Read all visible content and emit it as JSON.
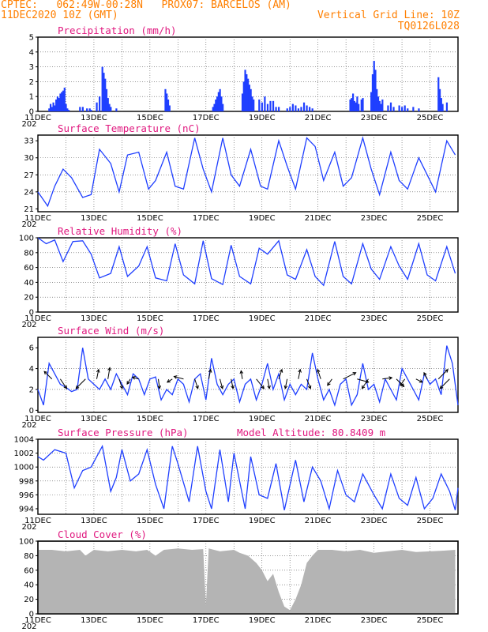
{
  "header": {
    "line1_left": "CPTEC:   062:49W-00:28N   PROX07: BARCELOS (AM)",
    "line2_left": "11DEC2020 10Z (GMT)",
    "line2_right": "Vertical Grid Line: 10Z",
    "line3_right": "TQ0126L028"
  },
  "colors": {
    "header": "#ff7f00",
    "title": "#e0187f",
    "line": "#1f3fff",
    "bars": "#1f3fff",
    "cloud": "#b4b4b4",
    "arrows": "#000000"
  },
  "xaxis": {
    "labels": [
      "11DEC",
      "13DEC",
      "15DEC",
      "17DEC",
      "19DEC",
      "21DEC",
      "23DEC",
      "25DEC"
    ],
    "year_fragment": "202"
  },
  "chart_data": [
    {
      "type": "bar",
      "title": "Precipitation (mm/h)",
      "ylim": [
        0,
        5
      ],
      "yticks": [
        "0",
        "1",
        "2",
        "3",
        "4",
        "5"
      ],
      "x_days": [
        0.4,
        0.45,
        0.5,
        0.55,
        0.6,
        0.65,
        0.7,
        0.75,
        0.8,
        0.85,
        0.9,
        0.95,
        1.0,
        1.05,
        1.1,
        1.5,
        1.6,
        1.75,
        1.85,
        1.9,
        2.1,
        2.2,
        2.3,
        2.35,
        2.4,
        2.45,
        2.5,
        2.55,
        2.6,
        2.8,
        4.55,
        4.6,
        4.65,
        4.7,
        6.25,
        6.3,
        6.35,
        6.4,
        6.45,
        6.5,
        6.55,
        6.6,
        7.3,
        7.35,
        7.4,
        7.45,
        7.5,
        7.55,
        7.6,
        7.65,
        7.7,
        7.9,
        8.0,
        8.1,
        8.2,
        8.3,
        8.4,
        8.5,
        8.6,
        8.9,
        9.0,
        9.1,
        9.2,
        9.3,
        9.4,
        9.5,
        9.6,
        9.7,
        9.8,
        11.15,
        11.2,
        11.25,
        11.3,
        11.35,
        11.4,
        11.45,
        11.55,
        11.6,
        11.9,
        11.95,
        12.0,
        12.05,
        12.1,
        12.15,
        12.2,
        12.25,
        12.3,
        12.5,
        12.6,
        12.7,
        12.9,
        13.0,
        13.1,
        13.2,
        13.4,
        13.6,
        14.3,
        14.35,
        14.4,
        14.45,
        14.6
      ],
      "values": [
        0.2,
        0.5,
        0.3,
        0.6,
        0.4,
        0.8,
        1.0,
        0.9,
        1.2,
        1.3,
        1.4,
        1.6,
        0.5,
        0.2,
        0.1,
        0.3,
        0.3,
        0.2,
        0.2,
        0.1,
        0.6,
        1.0,
        3.0,
        2.6,
        2.2,
        1.5,
        0.9,
        0.5,
        0.3,
        0.2,
        1.5,
        1.2,
        0.8,
        0.4,
        0.3,
        0.5,
        0.8,
        1.0,
        1.3,
        1.5,
        1.0,
        0.5,
        1.2,
        2.0,
        2.8,
        2.5,
        2.2,
        1.8,
        1.5,
        1.0,
        0.8,
        0.8,
        0.6,
        1.0,
        0.5,
        0.7,
        0.7,
        0.3,
        0.3,
        0.2,
        0.3,
        0.5,
        0.4,
        0.2,
        0.3,
        0.6,
        0.4,
        0.3,
        0.2,
        0.8,
        0.9,
        1.2,
        0.7,
        0.6,
        1.0,
        0.5,
        0.8,
        0.9,
        1.3,
        2.5,
        3.4,
        2.8,
        1.5,
        1.0,
        0.7,
        0.5,
        0.8,
        0.4,
        0.6,
        0.3,
        0.4,
        0.3,
        0.4,
        0.2,
        0.3,
        0.2,
        2.3,
        1.5,
        0.9,
        0.5,
        0.6
      ]
    },
    {
      "type": "line",
      "title": "Surface Temperature (nC)",
      "ylim": [
        20.5,
        34
      ],
      "yticks": [
        "21",
        "24",
        "27",
        "30",
        "33"
      ],
      "ytick_values": [
        21,
        24,
        27,
        30,
        33
      ],
      "x_days": [
        0.0,
        0.35,
        0.6,
        0.9,
        1.2,
        1.6,
        1.9,
        2.2,
        2.6,
        2.9,
        3.2,
        3.6,
        3.95,
        4.2,
        4.6,
        4.9,
        5.2,
        5.6,
        5.9,
        6.2,
        6.6,
        6.9,
        7.2,
        7.6,
        7.95,
        8.2,
        8.6,
        8.9,
        9.2,
        9.6,
        9.9,
        10.2,
        10.6,
        10.9,
        11.2,
        11.6,
        11.9,
        12.2,
        12.6,
        12.9,
        13.2,
        13.6,
        13.9,
        14.2,
        14.6,
        14.9
      ],
      "values": [
        24.0,
        21.5,
        25.0,
        28.0,
        26.5,
        23.0,
        23.5,
        31.5,
        29.0,
        24.0,
        30.5,
        31.0,
        24.5,
        26.0,
        31.0,
        25.0,
        24.5,
        33.5,
        28.0,
        24.0,
        33.5,
        27.0,
        25.0,
        31.5,
        25.0,
        24.5,
        33.0,
        28.5,
        24.5,
        33.5,
        32.0,
        26.0,
        31.0,
        25.0,
        26.5,
        33.5,
        28.0,
        23.5,
        31.0,
        26.0,
        24.5,
        30.0,
        27.0,
        24.0,
        33.0,
        30.5
      ]
    },
    {
      "type": "line",
      "title": "Relative Humidity (%)",
      "ylim": [
        0,
        100
      ],
      "yticks": [
        "0",
        "20",
        "40",
        "60",
        "80",
        "100"
      ],
      "ytick_values": [
        0,
        20,
        40,
        60,
        80,
        100
      ],
      "x_days": [
        0.0,
        0.3,
        0.6,
        0.9,
        1.25,
        1.6,
        1.9,
        2.2,
        2.6,
        2.9,
        3.2,
        3.6,
        3.9,
        4.2,
        4.6,
        4.9,
        5.2,
        5.6,
        5.9,
        6.2,
        6.6,
        6.9,
        7.2,
        7.6,
        7.9,
        8.2,
        8.6,
        8.9,
        9.2,
        9.6,
        9.9,
        10.2,
        10.6,
        10.9,
        11.2,
        11.6,
        11.9,
        12.2,
        12.6,
        12.9,
        13.2,
        13.6,
        13.9,
        14.2,
        14.6,
        14.9
      ],
      "values": [
        100,
        92,
        97,
        68,
        95,
        96,
        78,
        46,
        52,
        88,
        48,
        62,
        88,
        46,
        42,
        92,
        50,
        38,
        96,
        45,
        37,
        90,
        48,
        38,
        86,
        78,
        96,
        50,
        44,
        84,
        48,
        36,
        95,
        48,
        38,
        92,
        58,
        44,
        88,
        62,
        44,
        92,
        50,
        42,
        88,
        52
      ]
    },
    {
      "type": "line",
      "title": "Surface Wind (m/s)",
      "ylim": [
        -0.2,
        7
      ],
      "yticks": [
        "0",
        "2",
        "4",
        "6"
      ],
      "ytick_values": [
        0,
        2,
        4,
        6
      ],
      "x_days": [
        0.0,
        0.2,
        0.4,
        0.6,
        0.8,
        1.0,
        1.2,
        1.4,
        1.6,
        1.8,
        2.0,
        2.2,
        2.4,
        2.6,
        2.8,
        3.0,
        3.2,
        3.4,
        3.6,
        3.8,
        4.0,
        4.2,
        4.4,
        4.6,
        4.8,
        5.0,
        5.2,
        5.4,
        5.6,
        5.8,
        6.0,
        6.2,
        6.4,
        6.6,
        6.8,
        7.0,
        7.2,
        7.4,
        7.6,
        7.8,
        8.0,
        8.2,
        8.4,
        8.6,
        8.8,
        9.0,
        9.2,
        9.4,
        9.6,
        9.8,
        10.0,
        10.2,
        10.4,
        10.6,
        10.8,
        11.0,
        11.2,
        11.4,
        11.6,
        11.8,
        12.0,
        12.2,
        12.4,
        12.6,
        12.8,
        13.0,
        13.2,
        13.4,
        13.6,
        13.8,
        14.0,
        14.2,
        14.4,
        14.6,
        14.8,
        15.0
      ],
      "values": [
        2.0,
        0.5,
        4.5,
        3.5,
        2.5,
        2.2,
        1.8,
        2.0,
        6.0,
        3.0,
        2.5,
        2.0,
        3.0,
        2.0,
        3.5,
        2.5,
        1.5,
        3.5,
        3.0,
        1.5,
        3.0,
        3.2,
        1.0,
        2.0,
        1.5,
        3.0,
        2.5,
        0.8,
        3.0,
        3.5,
        1.0,
        5.0,
        2.5,
        1.5,
        2.5,
        3.0,
        0.8,
        2.5,
        3.0,
        1.0,
        2.5,
        4.5,
        2.0,
        3.5,
        1.0,
        2.5,
        1.5,
        2.5,
        2.0,
        5.5,
        3.0,
        1.0,
        2.0,
        0.5,
        2.5,
        3.0,
        0.5,
        1.5,
        4.5,
        2.0,
        2.5,
        0.8,
        3.0,
        2.0,
        1.0,
        4.0,
        3.0,
        2.0,
        1.0,
        3.5,
        2.5,
        3.0,
        1.5,
        6.2,
        4.5,
        0.5
      ],
      "arrow_days": [
        0.5,
        0.8,
        1.7,
        2.1,
        2.5,
        2.9,
        3.3,
        3.6,
        4.3,
        4.8,
        5.2,
        5.6,
        6.1,
        6.5,
        6.9,
        7.3,
        7.8,
        8.2,
        8.6,
        8.9,
        9.3,
        9.6,
        10.1,
        10.5,
        10.9,
        11.4,
        11.8,
        12.3,
        12.8,
        13.1,
        13.5,
        13.9,
        14.3,
        14.7
      ],
      "arrow_u": [
        -1.2,
        1.0,
        -1.5,
        0.3,
        0.3,
        0.5,
        -0.5,
        -1.0,
        0.2,
        -0.8,
        -1.5,
        0.5,
        0.3,
        0.4,
        0.3,
        -0.2,
        1.2,
        0.3,
        0.5,
        -0.3,
        0.3,
        0.6,
        -0.5,
        -0.7,
        2.0,
        1.8,
        -1.0,
        1.5,
        1.2,
        -0.7,
        1.0,
        -0.5,
        1.5,
        -1.5
      ],
      "arrow_v": [
        1.2,
        -1.5,
        -1.5,
        1.5,
        1.8,
        -1.5,
        -0.8,
        0.3,
        -1.5,
        -0.5,
        0.4,
        -1.5,
        1.5,
        -1.5,
        -1.5,
        1.3,
        -1.5,
        -1.5,
        1.5,
        -1.5,
        1.5,
        -1.5,
        1.5,
        -1.0,
        1.0,
        -0.5,
        -1.5,
        0.2,
        -1.2,
        -1.0,
        -0.5,
        1.0,
        1.5,
        -1.5
      ]
    },
    {
      "type": "line",
      "title": "Surface Pressure (hPa)",
      "annotation": "Model Altitude: 80.8409 m",
      "ylim": [
        993.2,
        1004
      ],
      "yticks": [
        "994",
        "996",
        "998",
        "1000",
        "1002",
        "1004"
      ],
      "ytick_values": [
        994,
        996,
        998,
        1000,
        1002,
        1004
      ],
      "x_days": [
        0.0,
        0.2,
        0.6,
        1.0,
        1.3,
        1.6,
        1.9,
        2.3,
        2.6,
        2.8,
        3.0,
        3.3,
        3.6,
        3.9,
        4.2,
        4.5,
        4.8,
        5.0,
        5.4,
        5.7,
        6.0,
        6.2,
        6.5,
        6.8,
        7.0,
        7.4,
        7.6,
        7.9,
        8.2,
        8.5,
        8.8,
        9.2,
        9.5,
        9.8,
        10.1,
        10.4,
        10.7,
        11.0,
        11.3,
        11.6,
        12.0,
        12.3,
        12.6,
        12.9,
        13.2,
        13.5,
        13.8,
        14.1,
        14.4,
        14.7,
        14.9,
        15.0
      ],
      "values": [
        1001.5,
        1001.0,
        1002.5,
        1002.0,
        997.0,
        999.5,
        1000.0,
        1003.0,
        996.5,
        998.5,
        1002.5,
        998.0,
        999.0,
        1002.5,
        997.5,
        994.0,
        1003.0,
        1000.5,
        995.0,
        1003.0,
        996.5,
        994.0,
        1002.5,
        995.0,
        1002.0,
        994.0,
        1001.5,
        996.0,
        995.5,
        1000.5,
        993.8,
        1001.0,
        995.0,
        1000.0,
        998.0,
        994.0,
        999.5,
        996.0,
        995.0,
        999.0,
        996.0,
        994.0,
        999.0,
        995.5,
        994.5,
        998.5,
        994.0,
        995.5,
        999.0,
        996.5,
        993.8,
        997.0
      ]
    },
    {
      "type": "area",
      "title": "Cloud Cover (%)",
      "ylim": [
        0,
        100
      ],
      "yticks": [
        "0",
        "20",
        "40",
        "60",
        "80",
        "100"
      ],
      "ytick_values": [
        0,
        20,
        40,
        60,
        80,
        100
      ],
      "x_days": [
        0.0,
        0.5,
        1.0,
        1.5,
        1.7,
        2.0,
        2.5,
        3.0,
        3.5,
        3.9,
        4.2,
        4.5,
        5.0,
        5.5,
        5.9,
        6.0,
        6.1,
        6.5,
        7.0,
        7.2,
        7.5,
        7.8,
        8.0,
        8.2,
        8.4,
        8.6,
        8.8,
        9.0,
        9.2,
        9.4,
        9.6,
        9.8,
        10.0,
        10.5,
        11.0,
        11.5,
        12.0,
        12.5,
        13.0,
        13.5,
        14.0,
        14.5,
        14.9
      ],
      "values": [
        88,
        88,
        86,
        88,
        80,
        88,
        86,
        88,
        86,
        88,
        80,
        88,
        90,
        88,
        89,
        12,
        90,
        86,
        88,
        84,
        80,
        70,
        60,
        45,
        55,
        30,
        10,
        5,
        20,
        40,
        70,
        80,
        88,
        88,
        86,
        88,
        84,
        86,
        88,
        85,
        86,
        87,
        88
      ]
    }
  ]
}
